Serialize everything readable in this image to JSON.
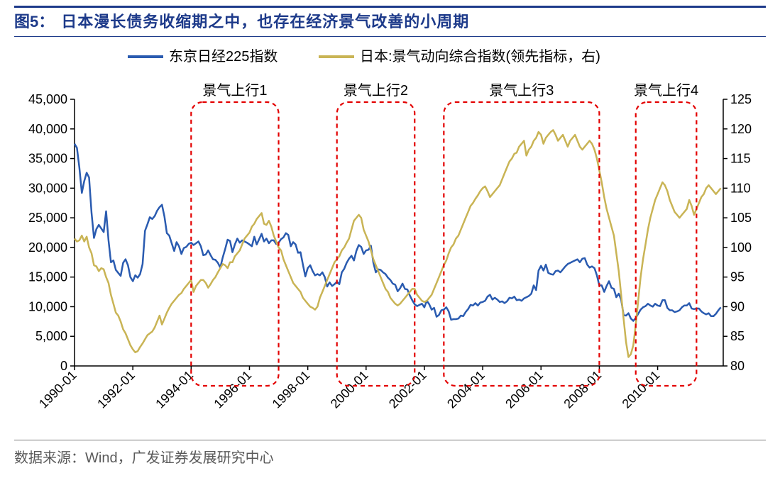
{
  "figure_label": "图5：",
  "figure_title": "日本漫长债务收缩期之中，也存在经济景气改善的小周期",
  "source": "数据来源：Wind，广发证券发展研究中心",
  "chart": {
    "type": "line-dual-axis",
    "background_color": "#ffffff",
    "axis_color": "#000000",
    "tick_length": 6,
    "line_width_series": 2.5,
    "legend": {
      "items": [
        {
          "label": "东京日经225指数",
          "color": "#2a5bb0",
          "swatch_width": 50,
          "swatch_height": 4
        },
        {
          "label": "日本:景气动向综合指数(领先指标，右)",
          "color": "#c9b455",
          "swatch_width": 50,
          "swatch_height": 4
        }
      ],
      "fontsize": 20
    },
    "x": {
      "ticks": [
        "1990-01",
        "1992-01",
        "1994-01",
        "1996-01",
        "1998-01",
        "2000-01",
        "2002-01",
        "2004-01",
        "2006-01",
        "2008-01",
        "2010-01"
      ],
      "min_index": 0,
      "max_index": 267,
      "tick_rotation_deg": -45,
      "label_fontsize": 18
    },
    "y_left": {
      "min": 0,
      "max": 45000,
      "step": 5000,
      "ticks": [
        0,
        5000,
        10000,
        15000,
        20000,
        25000,
        30000,
        35000,
        40000,
        45000
      ],
      "label_fontsize": 18
    },
    "y_right": {
      "min": 80,
      "max": 125,
      "step": 5,
      "ticks": [
        80,
        85,
        90,
        95,
        100,
        105,
        110,
        115,
        120,
        125
      ],
      "label_fontsize": 18
    },
    "series": [
      {
        "name": "nikkei225",
        "axis": "left",
        "color": "#2a5bb0",
        "data": [
          37500,
          36800,
          33500,
          29200,
          31200,
          32600,
          31800,
          25800,
          21600,
          23100,
          23800,
          23200,
          22600,
          26100,
          21200,
          17500,
          17800,
          16200,
          15700,
          15200,
          17400,
          18000,
          17000,
          15000,
          14300,
          15300,
          14900,
          15500,
          17200,
          22800,
          23900,
          25100,
          24800,
          25300,
          26200,
          26800,
          27200,
          25200,
          22400,
          22000,
          20700,
          19400,
          20900,
          20200,
          18900,
          19900,
          20100,
          20600,
          20800,
          20400,
          20700,
          21000,
          20200,
          18700,
          18800,
          19500,
          18700,
          18000,
          17900,
          17400,
          16600,
          18300,
          19700,
          21300,
          21100,
          19200,
          20500,
          21500,
          20800,
          21200,
          21000,
          20800,
          20500,
          20200,
          21800,
          20500,
          21400,
          22300,
          21000,
          21500,
          20700,
          21200,
          21200,
          20600,
          20800,
          21400,
          21700,
          22400,
          22100,
          20200,
          20900,
          20500,
          19100,
          19200,
          17100,
          15100,
          16500,
          17000,
          16000,
          15300,
          15500,
          15300,
          15800,
          15000,
          13400,
          14100,
          13500,
          13800,
          14200,
          13800,
          15800,
          16400,
          17400,
          18100,
          18600,
          17800,
          19400,
          20400,
          20100,
          18900,
          19500,
          19600,
          20300,
          17400,
          15800,
          16300,
          16200,
          15800,
          15500,
          14900,
          14500,
          13900,
          13700,
          12600,
          13100,
          13900,
          13000,
          12900,
          11900,
          11100,
          10400,
          10100,
          10300,
          10500,
          9900,
          11000,
          10400,
          9500,
          9800,
          8300,
          8600,
          9400,
          9500,
          9900,
          9200,
          7800,
          7900,
          7900,
          8000,
          8500,
          8400,
          9100,
          9600,
          10300,
          10200,
          10600,
          10200,
          10700,
          10800,
          11000,
          11700,
          12000,
          11200,
          11500,
          11200,
          10800,
          10900,
          10600,
          10900,
          11500,
          11400,
          11700,
          11100,
          11200,
          11000,
          11400,
          11600,
          11800,
          12200,
          13600,
          12800,
          16100,
          16900,
          16100,
          17100,
          15700,
          15500,
          15400,
          16000,
          16100,
          15800,
          16300,
          16800,
          17200,
          17400,
          17600,
          17800,
          18000,
          17500,
          18100,
          18200,
          17100,
          16600,
          16800,
          16500,
          15300,
          13600,
          13600,
          12500,
          13500,
          14300,
          13200,
          13000,
          11600,
          12200,
          11200,
          8600,
          8500,
          8900,
          8000,
          7600,
          8100,
          8800,
          9500,
          9900,
          10100,
          10500,
          10200,
          10000,
          10500,
          10200,
          10100,
          11100,
          11100,
          9800,
          9400,
          9400,
          9100,
          9200,
          9400,
          9900,
          10200,
          10200,
          10600,
          9700,
          9600,
          9700,
          9700,
          9200,
          8900,
          8700,
          8900,
          8400,
          8400,
          8800,
          9400,
          9900
        ]
      },
      {
        "name": "leading_index",
        "axis": "right",
        "color": "#c9b455",
        "data": [
          101.5,
          101.0,
          101.2,
          102.0,
          101.0,
          101.8,
          100.0,
          99.0,
          97.0,
          96.8,
          96.0,
          96.5,
          96.3,
          95.0,
          94.0,
          92.0,
          90.5,
          89.0,
          88.5,
          87.5,
          86.2,
          85.5,
          84.5,
          83.5,
          82.8,
          82.3,
          82.5,
          83.2,
          83.8,
          84.5,
          85.2,
          85.5,
          85.8,
          86.5,
          87.5,
          88.5,
          87.0,
          88.0,
          89.0,
          89.8,
          90.5,
          91.0,
          91.5,
          92.0,
          92.3,
          93.0,
          93.5,
          94.0,
          94.5,
          92.5,
          93.5,
          94.0,
          94.5,
          94.5,
          94.0,
          93.2,
          93.8,
          94.5,
          95.0,
          95.8,
          96.5,
          97.2,
          97.0,
          96.5,
          97.5,
          97.5,
          98.5,
          99.0,
          99.5,
          100.5,
          101.5,
          102.0,
          102.5,
          103.5,
          104.0,
          104.8,
          105.3,
          105.8,
          104.0,
          103.8,
          104.5,
          103.5,
          102.0,
          101.0,
          100.0,
          99.5,
          98.0,
          97.0,
          96.0,
          95.0,
          94.0,
          93.5,
          93.0,
          92.5,
          91.5,
          91.0,
          90.5,
          90.0,
          89.8,
          89.5,
          90.0,
          91.5,
          92.5,
          93.5,
          94.5,
          95.5,
          96.5,
          97.5,
          98.0,
          98.5,
          99.5,
          100.0,
          100.8,
          101.5,
          103.0,
          104.5,
          105.0,
          105.5,
          105.0,
          103.0,
          102.0,
          101.0,
          99.5,
          98.0,
          97.0,
          96.0,
          95.0,
          94.0,
          93.0,
          92.5,
          91.5,
          91.0,
          90.5,
          90.2,
          90.5,
          91.0,
          91.5,
          92.0,
          92.5,
          93.0,
          93.0,
          92.0,
          91.5,
          91.0,
          90.8,
          91.0,
          91.5,
          92.0,
          93.0,
          94.0,
          95.0,
          96.0,
          97.0,
          97.8,
          99.0,
          100.0,
          100.5,
          101.5,
          102.0,
          103.0,
          104.0,
          105.0,
          106.0,
          107.0,
          107.5,
          108.2,
          108.8,
          109.5,
          110.0,
          110.3,
          109.5,
          108.5,
          109.0,
          109.5,
          110.0,
          110.5,
          111.5,
          112.5,
          113.5,
          114.5,
          115.0,
          115.8,
          116.0,
          117.0,
          117.5,
          118.0,
          115.5,
          116.5,
          117.0,
          118.0,
          118.5,
          119.5,
          119.0,
          117.5,
          118.5,
          119.0,
          119.5,
          119.8,
          119.0,
          118.0,
          118.5,
          119.0,
          118.0,
          117.0,
          118.0,
          118.5,
          119.0,
          118.0,
          117.0,
          116.5,
          117.0,
          117.5,
          118.0,
          117.5,
          116.5,
          115.0,
          113.0,
          111.0,
          108.5,
          106.5,
          105.0,
          103.5,
          102.0,
          99.0,
          96.0,
          92.0,
          88.0,
          84.0,
          81.5,
          82.0,
          83.5,
          87.0,
          91.0,
          95.0,
          98.0,
          100.5,
          103.0,
          105.0,
          106.5,
          108.0,
          109.0,
          110.0,
          111.0,
          110.5,
          109.5,
          108.0,
          107.0,
          106.0,
          105.5,
          105.0,
          105.5,
          106.0,
          106.5,
          108.0,
          107.0,
          105.5,
          106.5,
          107.5,
          108.5,
          109.0,
          110.0,
          110.5,
          110.0,
          109.5,
          109.0,
          109.5,
          110.0
        ]
      }
    ],
    "annotations": [
      {
        "label": "景气上行1",
        "x_start": 48,
        "x_end": 84
      },
      {
        "label": "景气上行2",
        "x_start": 108,
        "x_end": 140
      },
      {
        "label": "景气上行3",
        "x_start": 152,
        "x_end": 216
      },
      {
        "label": "景气上行4",
        "x_start": 231,
        "x_end": 256
      }
    ],
    "annotation_style": {
      "stroke": "#e30000",
      "stroke_width": 2.2,
      "dash": "6 5",
      "rx": 16,
      "label_fontsize": 20,
      "label_color": "#000000"
    }
  }
}
